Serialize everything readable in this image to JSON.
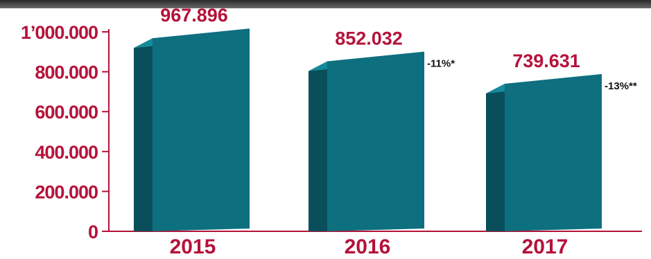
{
  "chart_data": {
    "type": "bar",
    "categories": [
      "2015",
      "2016",
      "2017"
    ],
    "values": [
      967896,
      852032,
      739631
    ],
    "value_labels": [
      "967.896",
      "852.032",
      "739.631"
    ],
    "annotations": [
      "",
      "-11%*",
      "-13%**"
    ],
    "yticks": [
      0,
      200000,
      400000,
      600000,
      800000,
      1000000
    ],
    "ytick_labels": [
      "0",
      "200.000",
      "400.000",
      "600.000",
      "800.000",
      "1’000.000"
    ],
    "ylim": [
      0,
      1000000
    ],
    "grid": false,
    "legend": "none",
    "style": "3d-box"
  },
  "colors": {
    "bar_front": "#0e6f7f",
    "bar_side": "#094f5b",
    "bar_top": "#168a9b",
    "label": "#b5123a",
    "axis": "#b5123a",
    "header_band": "#3c3c3c"
  }
}
